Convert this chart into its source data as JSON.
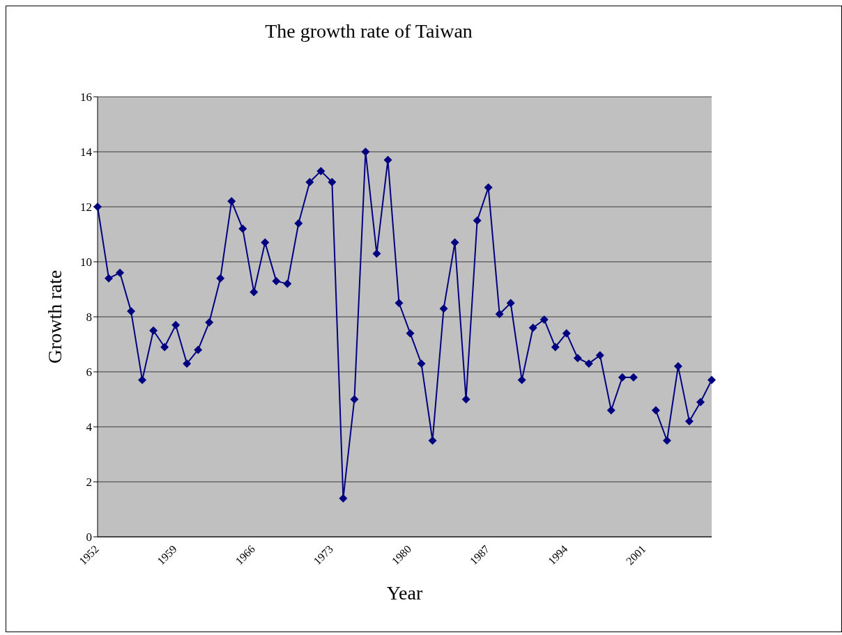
{
  "chart_data": {
    "type": "line",
    "title": "The growth rate of Taiwan",
    "xlabel": "Year",
    "ylabel": "Growth rate",
    "categories": [
      "1952",
      null,
      null,
      null,
      null,
      null,
      null,
      "1959",
      null,
      null,
      null,
      null,
      null,
      null,
      "1966",
      null,
      null,
      null,
      null,
      null,
      null,
      "1973",
      null,
      null,
      null,
      null,
      null,
      null,
      "1980",
      null,
      null,
      null,
      null,
      null,
      null,
      "1987",
      null,
      null,
      null,
      null,
      null,
      null,
      "1994",
      null,
      null,
      null,
      null,
      null,
      null,
      "2001",
      null,
      null,
      null,
      null,
      null,
      null
    ],
    "series": [
      {
        "color": "#000080",
        "values": [
          12.0,
          9.4,
          9.6,
          8.2,
          5.7,
          7.5,
          6.9,
          7.7,
          6.3,
          6.8,
          7.8,
          9.4,
          12.2,
          11.2,
          8.9,
          10.7,
          9.3,
          9.2,
          11.4,
          12.9,
          13.3,
          12.9,
          1.4,
          5.0,
          14.0,
          10.3,
          13.7,
          8.5,
          7.4,
          6.3,
          3.5,
          8.3,
          10.7,
          5.0,
          11.5,
          12.7,
          8.1,
          8.5,
          5.7,
          7.6,
          7.9,
          6.9,
          7.4,
          6.5,
          6.3,
          6.6,
          4.6,
          5.8,
          5.8,
          null,
          4.6,
          3.5,
          6.2,
          4.2,
          4.9,
          5.7
        ]
      }
    ],
    "ylim": [
      0,
      16
    ],
    "yticks": [
      0,
      2,
      4,
      6,
      8,
      10,
      12,
      14,
      16
    ],
    "grid": "y",
    "marker": "diamond",
    "line_style": "solid"
  }
}
